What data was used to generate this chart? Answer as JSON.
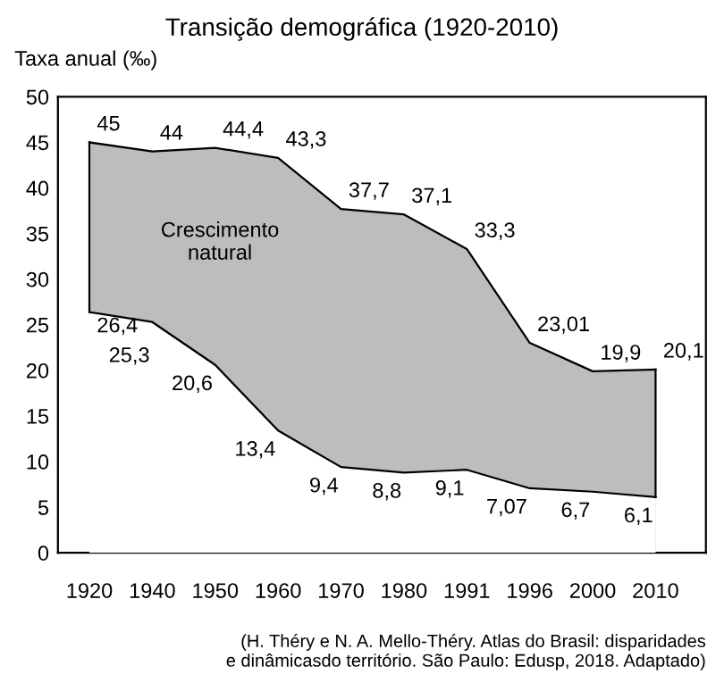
{
  "chart_data": {
    "type": "area",
    "title": "Transição demográfica (1920-2010)",
    "ylabel": "Taxa anual (‰)",
    "categories": [
      "1920",
      "1940",
      "1950",
      "1960",
      "1970",
      "1980",
      "1991",
      "1996",
      "2000",
      "2010"
    ],
    "series": [
      {
        "color": "#bdbdbd",
        "values": [
          45,
          44,
          44.4,
          43.3,
          37.7,
          37.1,
          33.3,
          23.01,
          19.9,
          20.1
        ],
        "value_labels": [
          "45",
          "44",
          "44,4",
          "43,3",
          "37,7",
          "37,1",
          "33,3",
          "23,01",
          "19,9",
          "20,1"
        ]
      },
      {
        "color": "#ffffff",
        "values": [
          26.4,
          25.3,
          20.6,
          13.4,
          9.4,
          8.8,
          9.1,
          7.07,
          6.7,
          6.1
        ],
        "value_labels": [
          "26,4",
          "25,3",
          "20,6",
          "13,4",
          "9,4",
          "8,8",
          "9,1",
          "7,07",
          "6,7",
          "6,1"
        ]
      }
    ],
    "ylim": [
      0,
      50
    ],
    "yticks": [
      0,
      5,
      10,
      15,
      20,
      25,
      30,
      35,
      40,
      45,
      50
    ],
    "grid": false,
    "annotations": [
      "Crescimento\nnatural",
      "(H. Théry e N. A. Mello-Théry. Atlas do Brasil: disparidades\ne dinâmicasdo território. São Paulo: Edusp, 2018. Adaptado)"
    ]
  }
}
